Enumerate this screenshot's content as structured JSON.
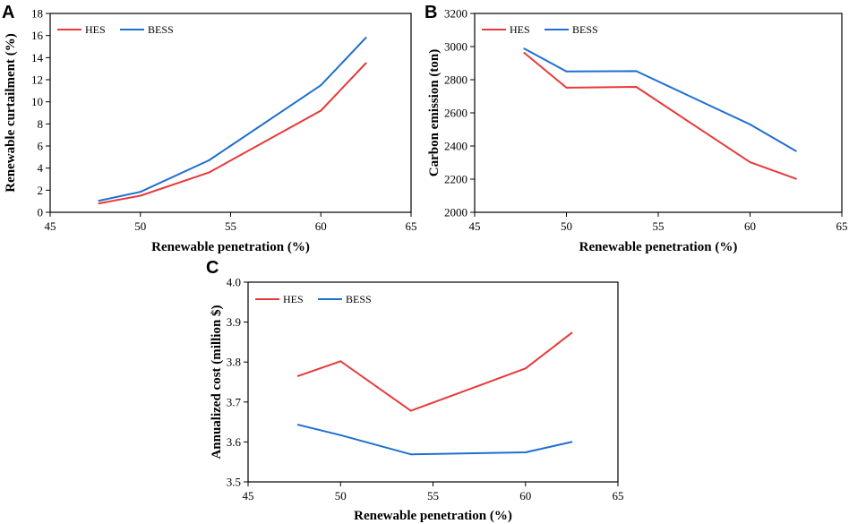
{
  "chart_data": [
    {
      "panel": "A",
      "type": "line",
      "xlabel": "Renewable penetration (%)",
      "ylabel": "Renewable curtailment (%)",
      "xlim": [
        45,
        65
      ],
      "ylim": [
        0,
        18
      ],
      "xticks": [
        45,
        50,
        55,
        60,
        65
      ],
      "yticks": [
        0,
        2,
        4,
        6,
        8,
        10,
        12,
        14,
        16,
        18
      ],
      "x": [
        47.7,
        50,
        53.8,
        60,
        62.5
      ],
      "legend_position": "top-left",
      "series": [
        {
          "name": "HES",
          "color": "#e8393a",
          "values": [
            0.8,
            1.5,
            3.6,
            9.2,
            13.5
          ]
        },
        {
          "name": "BESS",
          "color": "#1f6fd0",
          "values": [
            1.05,
            1.85,
            4.7,
            11.5,
            15.8
          ]
        }
      ]
    },
    {
      "panel": "B",
      "type": "line",
      "xlabel": "Renewable penetration (%)",
      "ylabel": "Carbon emission (ton)",
      "xlim": [
        45,
        65
      ],
      "ylim": [
        2000,
        3200
      ],
      "xticks": [
        45,
        50,
        55,
        60,
        65
      ],
      "yticks": [
        2000,
        2200,
        2400,
        2600,
        2800,
        3000,
        3200
      ],
      "x": [
        47.7,
        50,
        53.8,
        60,
        62.5
      ],
      "legend_position": "top-left",
      "series": [
        {
          "name": "HES",
          "color": "#e8393a",
          "values": [
            2962,
            2752,
            2757,
            2302,
            2202
          ]
        },
        {
          "name": "BESS",
          "color": "#1f6fd0",
          "values": [
            2988,
            2850,
            2852,
            2530,
            2370
          ]
        }
      ]
    },
    {
      "panel": "C",
      "type": "line",
      "xlabel": "Renewable penetration (%)",
      "ylabel": "Annualized cost (million $)",
      "xlim": [
        45,
        65
      ],
      "ylim": [
        3.5,
        4.0
      ],
      "xticks": [
        45,
        50,
        55,
        60,
        65
      ],
      "yticks": [
        "3.5",
        "3.6",
        "3.7",
        "3.8",
        "3.9",
        "4.0"
      ],
      "x": [
        47.7,
        50,
        53.8,
        60,
        62.5
      ],
      "legend_position": "top-left",
      "series": [
        {
          "name": "HES",
          "color": "#e8393a",
          "values": [
            3.765,
            3.802,
            3.678,
            3.784,
            3.873
          ]
        },
        {
          "name": "BESS",
          "color": "#1f6fd0",
          "values": [
            3.643,
            3.617,
            3.569,
            3.574,
            3.6
          ]
        }
      ]
    }
  ]
}
